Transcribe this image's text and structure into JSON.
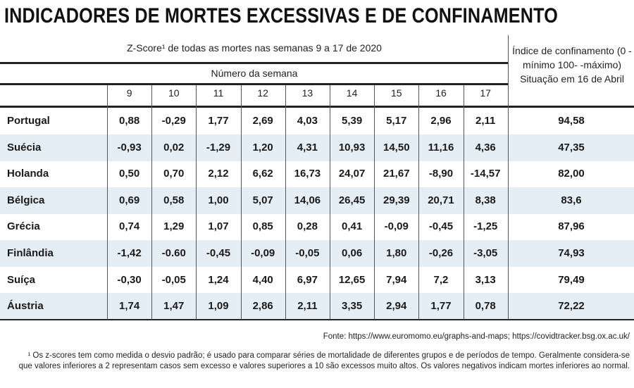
{
  "title": "INDICADORES DE MORTES EXCESSIVAS E DE CONFINAMENTO",
  "subtitle": "Z-Score¹ de todas as mortes nas semanas 9 a 17 de 2020",
  "week_group_label": "Número da semana",
  "index_header": "Índice de confinamento (0 - mínimo 100- -máximo) Situação em 16 de Abril",
  "weeks": [
    "9",
    "10",
    "11",
    "12",
    "13",
    "14",
    "15",
    "16",
    "17"
  ],
  "rows": [
    {
      "country": "Portugal",
      "values": [
        "0,88",
        "-0,29",
        "1,77",
        "2,69",
        "4,03",
        "5,39",
        "5,17",
        "2,96",
        "2,11"
      ],
      "index": "94,58"
    },
    {
      "country": "Suécia",
      "values": [
        "-0,93",
        "0,02",
        "-1,29",
        "1,20",
        "4,31",
        "10,93",
        "14,50",
        "11,16",
        "4,36"
      ],
      "index": "47,35"
    },
    {
      "country": "Holanda",
      "values": [
        "0,50",
        "0,70",
        "2,12",
        "6,62",
        "16,73",
        "24,07",
        "21,67",
        "-8,90",
        "-14,57"
      ],
      "index": "82,00"
    },
    {
      "country": "Bélgica",
      "values": [
        "0,69",
        "0,58",
        "1,00",
        "5,07",
        "14,06",
        "26,45",
        "29,39",
        "20,71",
        "8,38"
      ],
      "index": "83,6"
    },
    {
      "country": "Grécia",
      "values": [
        "0,74",
        "1,29",
        "1,07",
        "0,85",
        "0,28",
        "0,41",
        "-0,09",
        "-0,45",
        "-1,25"
      ],
      "index": "87,96"
    },
    {
      "country": "Finlândia",
      "values": [
        "-1,42",
        "-0.60",
        "-0,45",
        "-0,09",
        "-0,05",
        "0,06",
        "1,80",
        "-0,26",
        "-3,05"
      ],
      "index": "74,93"
    },
    {
      "country": "Suíça",
      "values": [
        "-0,30",
        "-0,05",
        "1,24",
        "4,40",
        "6,97",
        "12,65",
        "7,94",
        "7,2",
        "3,13"
      ],
      "index": "79,49"
    },
    {
      "country": "Áustria",
      "values": [
        "1,74",
        "1,47",
        "1,09",
        "2,86",
        "2,11",
        "3,35",
        "2,94",
        "1,77",
        "0,78"
      ],
      "index": "72,22"
    }
  ],
  "source": "Fonte: https://www.euromomo.eu/graphs-and-maps; https://covidtracker.bsg.ox.ac.uk/",
  "footnote": "¹ Os z-scores tem como medida o desvio padrão; é usado para comparar séries de mortalidade de diferentes grupos e de períodos de tempo. Geralmente considera-se que valores inferiores a 2 representam casos sem excesso e valores superiores a 10 são excessos muito altos. Os valores negativos indicam mortes inferiores ao normal.",
  "colors": {
    "band": "#e6eef5",
    "text": "#1a1a1a"
  }
}
